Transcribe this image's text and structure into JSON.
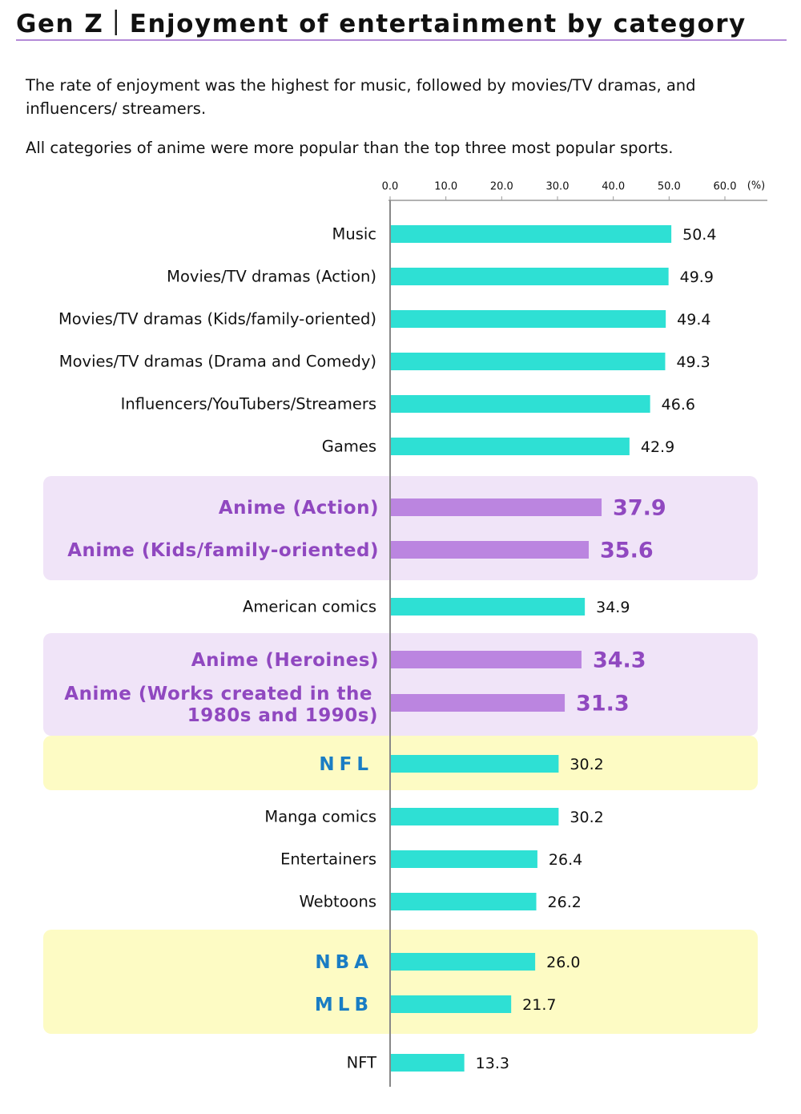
{
  "header": {
    "title": "Gen Z｜Enjoyment of entertainment by category",
    "subtitle_1": "The rate of enjoyment was the highest for music, followed by movies/TV dramas, and influencers/ streamers.",
    "subtitle_2": "All categories of anime were more popular than the top three most popular sports."
  },
  "chart_data": {
    "type": "bar",
    "orientation": "horizontal",
    "title": "",
    "xlabel": "",
    "ylabel": "",
    "unit_label": "(%)",
    "xlim": [
      0,
      60
    ],
    "ticks": [
      "0.0",
      "10.0",
      "20.0",
      "30.0",
      "40.0",
      "50.0",
      "60.0"
    ],
    "grid": false,
    "legend": "none",
    "colors": {
      "default": "#2ee0d4",
      "anime": "#bb85e0",
      "anime_text": "#9048c0",
      "sports_text": "#1a7dc4",
      "anime_band": "#f0e4f8",
      "sports_band": "#fdfbc4"
    },
    "categories": [
      "Music",
      "Movies/TV dramas (Action)",
      "Movies/TV dramas (Kids/family-oriented)",
      "Movies/TV dramas (Drama and Comedy)",
      "Influencers/YouTubers/Streamers",
      "Games",
      "Anime (Action)",
      "Anime (Kids/family-oriented)",
      "American comics",
      "Anime (Heroines)",
      "Anime (Works created in the 1980s and 1990s)",
      "NFL",
      "Manga comics",
      "Entertainers",
      "Webtoons",
      "NBA",
      "MLB",
      "NFT"
    ],
    "values": [
      50.4,
      49.9,
      49.4,
      49.3,
      46.6,
      42.9,
      37.9,
      35.6,
      34.9,
      34.3,
      31.3,
      30.2,
      30.2,
      26.4,
      26.2,
      26.0,
      21.7,
      13.3
    ],
    "value_labels": [
      "50.4",
      "49.9",
      "49.4",
      "49.3",
      "46.6",
      "42.9",
      "37.9",
      "35.6",
      "34.9",
      "34.3",
      "31.3",
      "30.2",
      "30.2",
      "26.4",
      "26.2",
      "26.0",
      "21.7",
      "13.3"
    ],
    "groups": [
      "default",
      "default",
      "default",
      "default",
      "default",
      "default",
      "anime",
      "anime",
      "default",
      "anime",
      "anime",
      "sports",
      "default",
      "default",
      "default",
      "sports",
      "sports",
      "default"
    ]
  }
}
